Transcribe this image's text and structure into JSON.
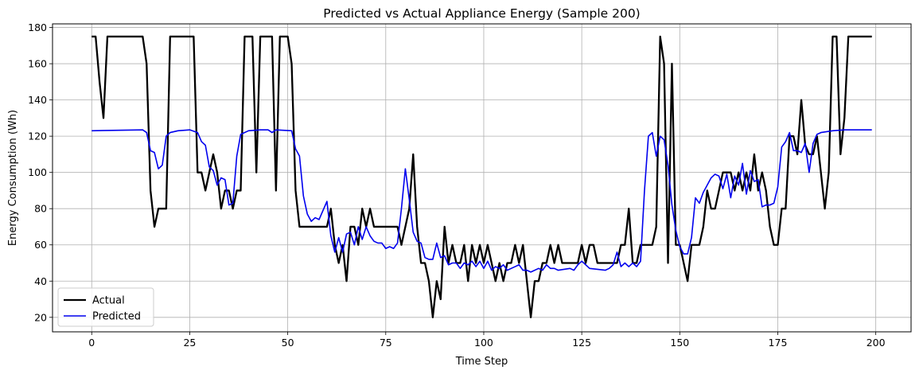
{
  "chart_data": {
    "type": "line",
    "title": "Predicted vs Actual Appliance Energy (Sample 200)",
    "xlabel": "Time Step",
    "ylabel": "Energy Consumption (Wh)",
    "xlim": [
      -10,
      209
    ],
    "ylim": [
      12,
      182
    ],
    "xticks": [
      0,
      25,
      50,
      75,
      100,
      125,
      150,
      175,
      200
    ],
    "yticks": [
      20,
      40,
      60,
      80,
      100,
      120,
      140,
      160,
      180
    ],
    "grid": true,
    "legend_position": "lower-left",
    "series": [
      {
        "name": "Actual",
        "color": "#000000",
        "points": [
          [
            0,
            175
          ],
          [
            1,
            175
          ],
          [
            2,
            150
          ],
          [
            3,
            130
          ],
          [
            4,
            175
          ],
          [
            5,
            175
          ],
          [
            13,
            175
          ],
          [
            14,
            160
          ],
          [
            15,
            90
          ],
          [
            16,
            70
          ],
          [
            17,
            80
          ],
          [
            19,
            80
          ],
          [
            20,
            175
          ],
          [
            26,
            175
          ],
          [
            27,
            100
          ],
          [
            28,
            100
          ],
          [
            29,
            90
          ],
          [
            30,
            100
          ],
          [
            31,
            110
          ],
          [
            32,
            100
          ],
          [
            33,
            80
          ],
          [
            34,
            90
          ],
          [
            35,
            90
          ],
          [
            36,
            80
          ],
          [
            37,
            90
          ],
          [
            38,
            90
          ],
          [
            39,
            175
          ],
          [
            41,
            175
          ],
          [
            42,
            100
          ],
          [
            43,
            175
          ],
          [
            46,
            175
          ],
          [
            47,
            90
          ],
          [
            48,
            175
          ],
          [
            50,
            175
          ],
          [
            51,
            160
          ],
          [
            52,
            90
          ],
          [
            53,
            70
          ],
          [
            60,
            70
          ],
          [
            61,
            80
          ],
          [
            62,
            60
          ],
          [
            63,
            50
          ],
          [
            64,
            60
          ],
          [
            65,
            40
          ],
          [
            66,
            70
          ],
          [
            67,
            70
          ],
          [
            68,
            60
          ],
          [
            69,
            80
          ],
          [
            70,
            70
          ],
          [
            71,
            80
          ],
          [
            72,
            70
          ],
          [
            78,
            70
          ],
          [
            79,
            60
          ],
          [
            80,
            70
          ],
          [
            81,
            80
          ],
          [
            82,
            110
          ],
          [
            83,
            70
          ],
          [
            84,
            50
          ],
          [
            85,
            50
          ],
          [
            86,
            40
          ],
          [
            87,
            20
          ],
          [
            88,
            40
          ],
          [
            89,
            30
          ],
          [
            90,
            70
          ],
          [
            91,
            50
          ],
          [
            92,
            60
          ],
          [
            93,
            50
          ],
          [
            94,
            50
          ],
          [
            95,
            60
          ],
          [
            96,
            40
          ],
          [
            97,
            60
          ],
          [
            98,
            50
          ],
          [
            99,
            60
          ],
          [
            100,
            50
          ],
          [
            101,
            60
          ],
          [
            102,
            50
          ],
          [
            103,
            40
          ],
          [
            104,
            50
          ],
          [
            105,
            40
          ],
          [
            106,
            50
          ],
          [
            107,
            50
          ],
          [
            108,
            60
          ],
          [
            109,
            50
          ],
          [
            110,
            60
          ],
          [
            111,
            40
          ],
          [
            112,
            20
          ],
          [
            113,
            40
          ],
          [
            114,
            40
          ],
          [
            115,
            50
          ],
          [
            116,
            50
          ],
          [
            117,
            60
          ],
          [
            118,
            50
          ],
          [
            119,
            60
          ],
          [
            120,
            50
          ],
          [
            124,
            50
          ],
          [
            125,
            60
          ],
          [
            126,
            50
          ],
          [
            127,
            60
          ],
          [
            128,
            60
          ],
          [
            129,
            50
          ],
          [
            134,
            50
          ],
          [
            135,
            60
          ],
          [
            136,
            60
          ],
          [
            137,
            80
          ],
          [
            138,
            50
          ],
          [
            139,
            50
          ],
          [
            140,
            60
          ],
          [
            143,
            60
          ],
          [
            144,
            70
          ],
          [
            145,
            175
          ],
          [
            146,
            160
          ],
          [
            147,
            50
          ],
          [
            148,
            160
          ],
          [
            149,
            60
          ],
          [
            150,
            60
          ],
          [
            151,
            50
          ],
          [
            152,
            40
          ],
          [
            153,
            60
          ],
          [
            155,
            60
          ],
          [
            156,
            70
          ],
          [
            157,
            90
          ],
          [
            158,
            80
          ],
          [
            159,
            80
          ],
          [
            160,
            90
          ],
          [
            161,
            100
          ],
          [
            163,
            100
          ],
          [
            164,
            90
          ],
          [
            165,
            100
          ],
          [
            166,
            90
          ],
          [
            167,
            100
          ],
          [
            168,
            90
          ],
          [
            169,
            110
          ],
          [
            170,
            90
          ],
          [
            171,
            100
          ],
          [
            172,
            90
          ],
          [
            173,
            70
          ],
          [
            174,
            60
          ],
          [
            175,
            60
          ],
          [
            176,
            80
          ],
          [
            177,
            80
          ],
          [
            178,
            120
          ],
          [
            179,
            120
          ],
          [
            180,
            110
          ],
          [
            181,
            140
          ],
          [
            182,
            115
          ],
          [
            183,
            110
          ],
          [
            184,
            110
          ],
          [
            185,
            120
          ],
          [
            186,
            100
          ],
          [
            187,
            80
          ],
          [
            188,
            100
          ],
          [
            189,
            175
          ],
          [
            190,
            175
          ],
          [
            191,
            110
          ],
          [
            192,
            130
          ],
          [
            193,
            175
          ],
          [
            199,
            175
          ]
        ]
      },
      {
        "name": "Predicted",
        "color": "#0000ee",
        "points": [
          [
            0,
            123
          ],
          [
            13,
            123.5
          ],
          [
            14,
            122
          ],
          [
            15,
            112
          ],
          [
            16,
            111
          ],
          [
            17,
            102
          ],
          [
            18,
            104
          ],
          [
            19,
            120
          ],
          [
            20,
            122
          ],
          [
            22,
            123
          ],
          [
            25,
            123.5
          ],
          [
            27,
            122
          ],
          [
            28,
            117
          ],
          [
            29,
            115
          ],
          [
            30,
            103
          ],
          [
            31,
            101
          ],
          [
            32,
            93
          ],
          [
            33,
            97
          ],
          [
            34,
            96
          ],
          [
            35,
            82
          ],
          [
            36,
            83
          ],
          [
            37,
            109
          ],
          [
            38,
            121
          ],
          [
            40,
            123
          ],
          [
            43,
            123.5
          ],
          [
            45,
            123.5
          ],
          [
            46,
            122
          ],
          [
            47,
            123.5
          ],
          [
            51,
            123
          ],
          [
            52,
            113
          ],
          [
            53,
            109
          ],
          [
            54,
            87
          ],
          [
            55,
            77
          ],
          [
            56,
            73
          ],
          [
            57,
            75
          ],
          [
            58,
            74
          ],
          [
            59,
            79
          ],
          [
            60,
            84
          ],
          [
            61,
            65
          ],
          [
            62,
            56
          ],
          [
            63,
            64
          ],
          [
            64,
            56
          ],
          [
            65,
            66
          ],
          [
            66,
            67
          ],
          [
            67,
            60
          ],
          [
            68,
            70
          ],
          [
            69,
            63
          ],
          [
            70,
            70
          ],
          [
            71,
            65
          ],
          [
            72,
            62
          ],
          [
            73,
            61
          ],
          [
            74,
            61
          ],
          [
            75,
            58
          ],
          [
            76,
            59
          ],
          [
            77,
            58
          ],
          [
            78,
            61
          ],
          [
            79,
            80
          ],
          [
            80,
            102
          ],
          [
            81,
            85
          ],
          [
            82,
            67
          ],
          [
            83,
            62
          ],
          [
            84,
            61
          ],
          [
            85,
            53
          ],
          [
            86,
            52
          ],
          [
            87,
            52
          ],
          [
            88,
            61
          ],
          [
            89,
            53
          ],
          [
            90,
            54
          ],
          [
            91,
            49
          ],
          [
            92,
            50
          ],
          [
            93,
            50
          ],
          [
            94,
            47
          ],
          [
            95,
            50
          ],
          [
            96,
            49
          ],
          [
            97,
            51
          ],
          [
            98,
            48
          ],
          [
            99,
            51
          ],
          [
            100,
            47
          ],
          [
            101,
            51
          ],
          [
            102,
            46
          ],
          [
            103,
            48
          ],
          [
            104,
            47
          ],
          [
            105,
            49
          ],
          [
            106,
            46
          ],
          [
            107,
            47
          ],
          [
            108,
            48
          ],
          [
            109,
            49
          ],
          [
            110,
            46
          ],
          [
            111,
            46
          ],
          [
            112,
            45
          ],
          [
            114,
            47
          ],
          [
            115,
            46
          ],
          [
            116,
            49
          ],
          [
            117,
            47
          ],
          [
            118,
            47
          ],
          [
            119,
            46
          ],
          [
            122,
            47
          ],
          [
            123,
            46
          ],
          [
            124,
            49
          ],
          [
            125,
            51
          ],
          [
            126,
            49
          ],
          [
            127,
            47
          ],
          [
            131,
            46
          ],
          [
            132,
            47
          ],
          [
            133,
            49
          ],
          [
            134,
            56
          ],
          [
            135,
            48
          ],
          [
            136,
            50
          ],
          [
            137,
            48
          ],
          [
            138,
            50
          ],
          [
            139,
            48
          ],
          [
            140,
            51
          ],
          [
            141,
            90
          ],
          [
            142,
            120
          ],
          [
            143,
            122
          ],
          [
            144,
            109
          ],
          [
            145,
            120
          ],
          [
            146,
            118
          ],
          [
            147,
            104
          ],
          [
            148,
            82
          ],
          [
            149,
            68
          ],
          [
            150,
            59
          ],
          [
            151,
            55
          ],
          [
            152,
            55
          ],
          [
            153,
            64
          ],
          [
            154,
            86
          ],
          [
            155,
            83
          ],
          [
            156,
            89
          ],
          [
            157,
            93
          ],
          [
            158,
            97
          ],
          [
            159,
            99
          ],
          [
            160,
            98
          ],
          [
            161,
            91
          ],
          [
            162,
            99
          ],
          [
            163,
            86
          ],
          [
            164,
            98
          ],
          [
            165,
            93
          ],
          [
            166,
            105
          ],
          [
            167,
            88
          ],
          [
            168,
            101
          ],
          [
            169,
            95
          ],
          [
            170,
            96
          ],
          [
            171,
            81
          ],
          [
            172,
            82
          ],
          [
            173,
            82
          ],
          [
            174,
            83
          ],
          [
            175,
            92
          ],
          [
            176,
            114
          ],
          [
            177,
            117
          ],
          [
            178,
            122
          ],
          [
            179,
            112
          ],
          [
            180,
            112
          ],
          [
            181,
            111
          ],
          [
            182,
            116
          ],
          [
            183,
            100
          ],
          [
            184,
            116
          ],
          [
            185,
            121
          ],
          [
            186,
            122
          ],
          [
            189,
            123
          ],
          [
            192,
            123.5
          ],
          [
            199,
            123.5
          ]
        ]
      }
    ]
  }
}
